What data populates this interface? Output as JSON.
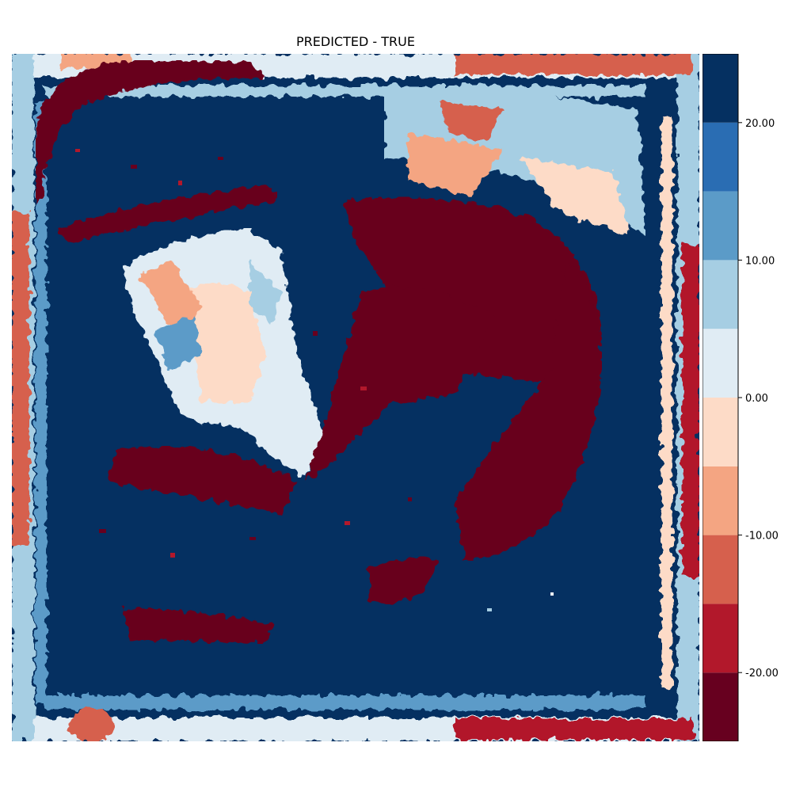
{
  "chart_data": {
    "type": "heatmap",
    "title": "PREDICTED - TRUE",
    "colorbar": {
      "levels": [
        -25,
        -20,
        -15,
        -10,
        -5,
        0,
        5,
        10,
        15,
        20,
        25
      ],
      "colors": [
        "#67001f",
        "#b2182b",
        "#d6604d",
        "#f4a582",
        "#fddbc7",
        "#e0ecf4",
        "#a6cee3",
        "#5b9bc8",
        "#2a6db3",
        "#053061"
      ],
      "tick_values": [
        -20,
        -10,
        0,
        10,
        20
      ],
      "tick_labels": [
        "-20.00",
        "-10.00",
        "0.00",
        "10.00",
        "20.00"
      ],
      "placement": "right"
    },
    "axes_visible": false,
    "grid": false
  }
}
